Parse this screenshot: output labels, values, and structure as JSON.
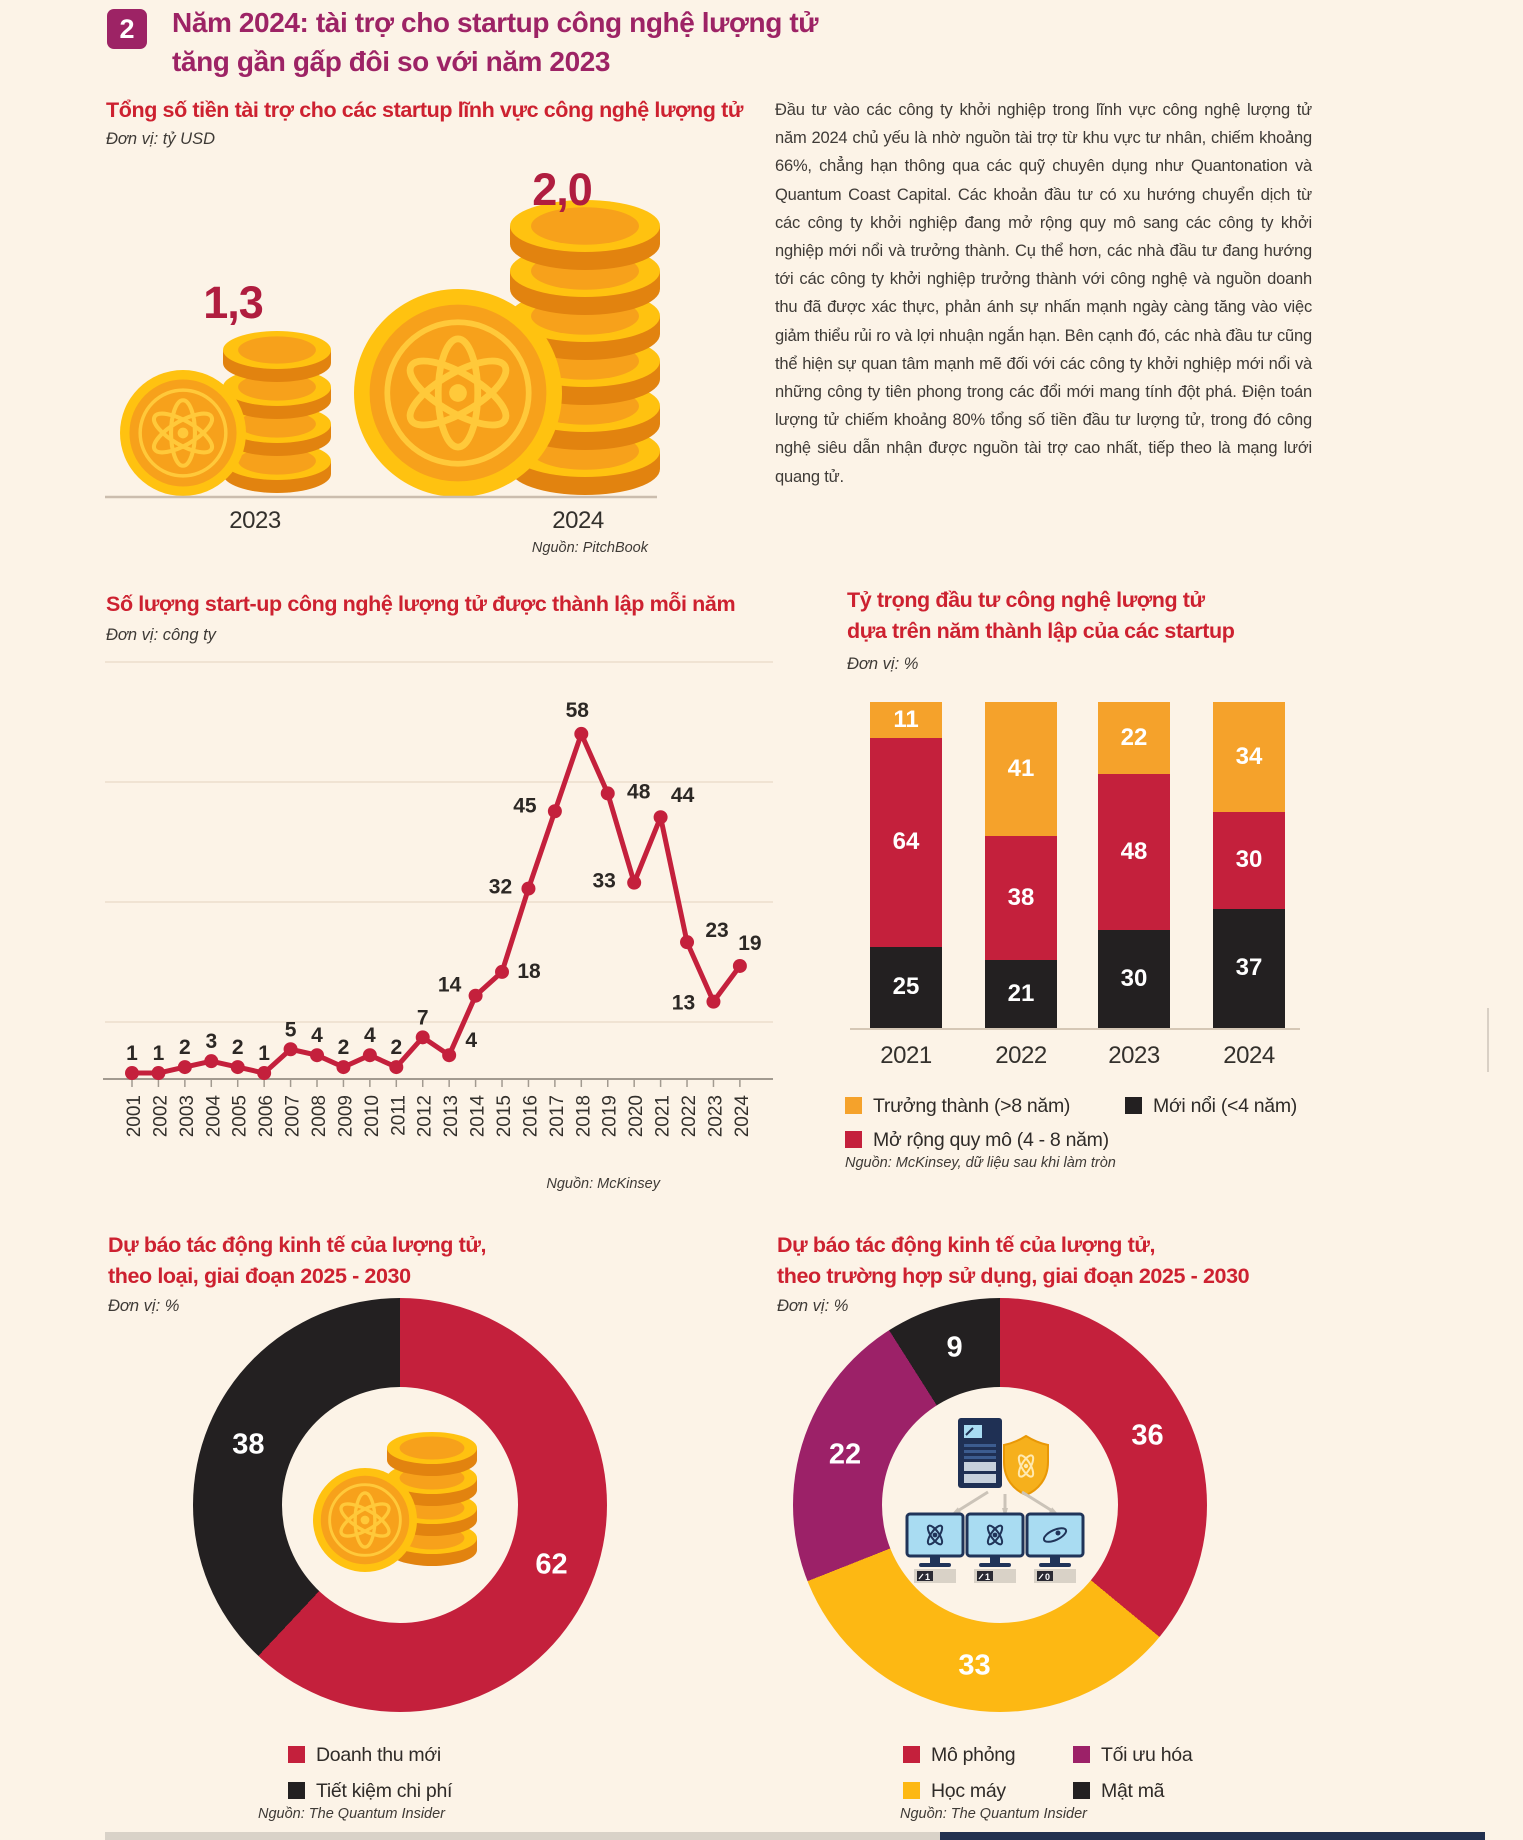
{
  "header": {
    "badge": "2",
    "title_line1": "Năm 2024: tài trợ cho startup công nghệ lượng tử",
    "title_line2": "tăng gần gấp đôi so với năm 2023"
  },
  "article": {
    "text": "Đầu tư vào các công ty khởi nghiệp trong lĩnh vực công nghệ lượng tử năm 2024 chủ yếu là nhờ nguồn tài trợ từ khu vực tư nhân, chiếm khoảng 66%, chẳng hạn thông qua các quỹ chuyên dụng như Quantonation và Quantum Coast Capital. Các khoản đầu tư có xu hướng chuyển dịch từ các công ty khởi nghiệp đang mở rộng quy mô sang các công ty khởi nghiệp mới nổi và trưởng thành. Cụ thể hơn, các nhà đầu tư đang hướng tới các công ty khởi nghiệp trưởng thành với công nghệ và nguồn doanh thu đã được xác thực, phản ánh sự nhấn mạnh ngày càng tăng vào việc giảm thiểu rủi ro và lợi nhuận ngắn hạn. Bên cạnh đó, các nhà đầu tư cũng thể hiện sự quan tâm mạnh mẽ đối với các công ty khởi nghiệp mới nổi và những công ty tiên phong trong các đổi mới mang tính đột phá. Điện toán lượng tử chiếm khoảng 80% tổng số tiền đầu tư lượng tử, trong đó công nghệ siêu dẫn nhận được nguồn tài trợ cao nhất, tiếp theo là mạng lưới quang tử."
  },
  "chart_data": [
    {
      "id": "funding",
      "type": "pictorial-bar",
      "title": "Tổng số tiền tài trợ cho các startup lĩnh vực công nghệ lượng tử",
      "unit_label": "Đơn vị: tỷ USD",
      "categories": [
        "2023",
        "2024"
      ],
      "values": [
        1.3,
        2.0
      ],
      "value_labels": [
        "1,3",
        "2,0"
      ],
      "source": "Nguồn: PitchBook"
    },
    {
      "id": "founded_per_year",
      "type": "line",
      "title": "Số lượng start-up công nghệ lượng tử được thành lập mỗi năm",
      "unit_label": "Đơn vị: công ty",
      "x": [
        "2001",
        "2002",
        "2003",
        "2004",
        "2005",
        "2006",
        "2007",
        "2008",
        "2009",
        "2010",
        "2011",
        "2012",
        "2013",
        "2014",
        "2015",
        "2016",
        "2017",
        "2018",
        "2019",
        "2020",
        "2021",
        "2022",
        "2023",
        "2024"
      ],
      "values": [
        1,
        1,
        2,
        3,
        2,
        1,
        5,
        4,
        2,
        4,
        2,
        7,
        4,
        14,
        18,
        32,
        45,
        58,
        48,
        33,
        44,
        23,
        13,
        19
      ],
      "ylim": [
        0,
        72
      ],
      "grid": true,
      "line_color": "#c4203c",
      "source": "Nguồn: McKinsey"
    },
    {
      "id": "investment_share_by_founding_year",
      "type": "stacked-bar",
      "title": "Tỷ trọng đầu tư công nghệ lượng tử dựa trên năm thành lập của các startup",
      "title_lines": [
        "Tỷ trọng đầu tư công nghệ lượng tử",
        "dựa trên năm thành lập của các startup"
      ],
      "unit_label": "Đơn vị: %",
      "categories": [
        "2021",
        "2022",
        "2023",
        "2024"
      ],
      "series": [
        {
          "name": "Trưởng thành (>8 năm)",
          "color": "#f5a22b",
          "values": [
            11,
            41,
            22,
            34
          ]
        },
        {
          "name": "Mở rộng quy mô (4 - 8 năm)",
          "color": "#c4203c",
          "values": [
            64,
            38,
            48,
            30
          ]
        },
        {
          "name": "Mới nổi (<4 năm)",
          "color": "#232021",
          "values": [
            25,
            21,
            30,
            37
          ]
        }
      ],
      "ylim": [
        0,
        100
      ],
      "source": "Nguồn: McKinsey, dữ liệu sau khi làm tròn"
    },
    {
      "id": "economic_impact_by_type",
      "type": "donut",
      "title": "Dự báo tác động kinh tế của lượng tử, theo loại, giai đoạn 2025 - 2030",
      "title_lines": [
        "Dự báo tác động kinh tế của lượng tử,",
        "theo loại, giai đoạn 2025 - 2030"
      ],
      "unit_label": "Đơn vị: %",
      "slices": [
        {
          "label": "Doanh thu mới",
          "value": 62,
          "color": "#c4203c"
        },
        {
          "label": "Tiết kiệm chi phí",
          "value": 38,
          "color": "#232021"
        }
      ],
      "source": "Nguồn: The Quantum Insider"
    },
    {
      "id": "economic_impact_by_use_case",
      "type": "donut",
      "title": "Dự báo tác động kinh tế của lượng tử, theo trường hợp sử dụng, giai đoạn 2025 - 2030",
      "title_lines": [
        "Dự báo tác động kinh tế của lượng tử,",
        "theo trường hợp sử dụng, giai đoạn 2025 - 2030"
      ],
      "unit_label": "Đơn vị: %",
      "slices": [
        {
          "label": "Mô phỏng",
          "value": 36,
          "color": "#c4203c"
        },
        {
          "label": "Học máy",
          "value": 33,
          "color": "#fdb813"
        },
        {
          "label": "Tối ưu hóa",
          "value": 22,
          "color": "#9c2168"
        },
        {
          "label": "Mật mã",
          "value": 9,
          "color": "#232021"
        }
      ],
      "source": "Nguồn: The Quantum Insider"
    }
  ]
}
